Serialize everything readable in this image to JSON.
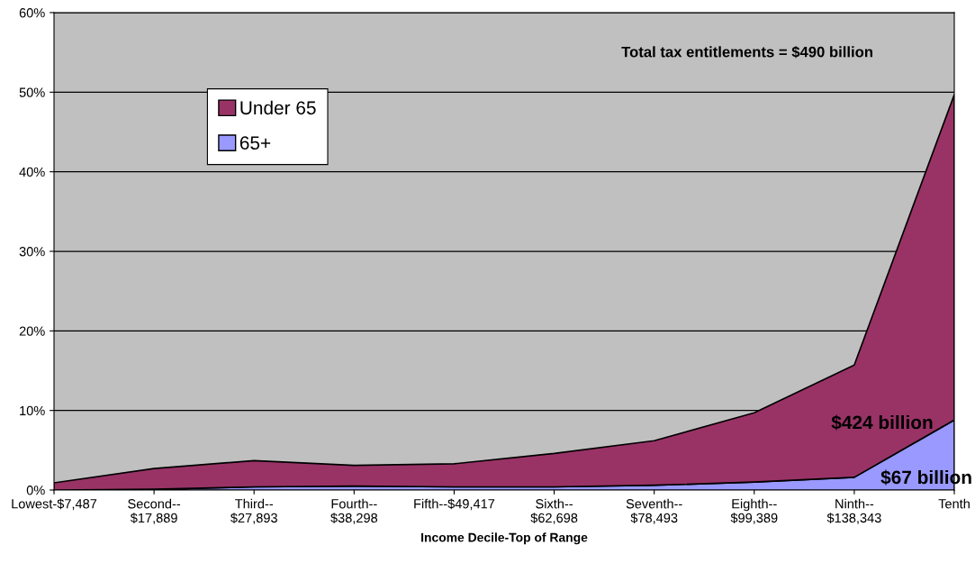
{
  "chart_data": {
    "type": "area",
    "stacked": true,
    "xlabel": "Income Decile-Top of Range",
    "categories": [
      "Lowest-$7,487",
      "Second--\n$17,889",
      "Third--\n$27,893",
      "Fourth--\n$38,298",
      "Fifth--$49,417",
      "Sixth--\n$62,698",
      "Seventh--\n$78,493",
      "Eighth--\n$99,389",
      "Ninth--\n$138,343",
      "Tenth"
    ],
    "series": [
      {
        "name": "65+",
        "color": "#9999ff",
        "values": [
          0,
          0.1,
          0.4,
          0.5,
          0.4,
          0.4,
          0.6,
          1.0,
          1.6,
          8.8
        ]
      },
      {
        "name": "Under 65",
        "color": "#993366",
        "values": [
          0.9,
          2.6,
          3.3,
          2.6,
          2.9,
          4.2,
          5.6,
          8.7,
          14.1,
          40.9
        ]
      }
    ],
    "ylim": [
      0,
      60
    ],
    "yticks": [
      {
        "value": 0,
        "label": "0%"
      },
      {
        "value": 10,
        "label": "10%"
      },
      {
        "value": 20,
        "label": "20%"
      },
      {
        "value": 30,
        "label": "30%"
      },
      {
        "value": 40,
        "label": "40%"
      },
      {
        "value": 50,
        "label": "50%"
      },
      {
        "value": 60,
        "label": "60%"
      }
    ],
    "grid": "y",
    "legend": "top left",
    "annotations": [
      "Total tax entitlements = $490 billion",
      "$424 billion",
      "$67 billion"
    ]
  }
}
